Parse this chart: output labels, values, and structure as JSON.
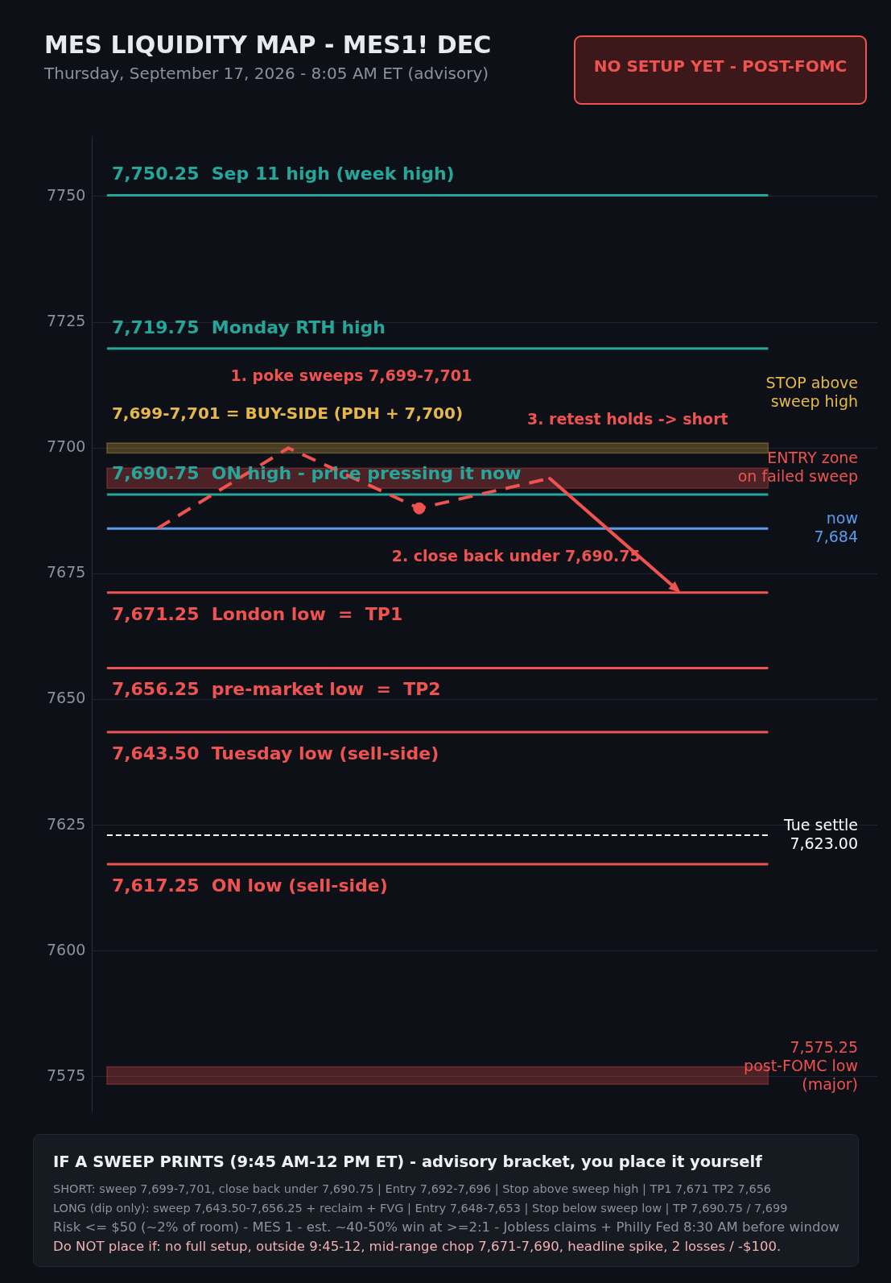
{
  "chart_data": {
    "type": "line",
    "title": "MES LIQUIDITY MAP - MES1! DEC",
    "subtitle": "Thursday, September 17, 2026 - 8:05 AM ET (advisory)",
    "categories": [
      null,
      null,
      null,
      null,
      null,
      null
    ],
    "series": [
      {
        "type": "line",
        "color": "#ef5350",
        "line_style": "dashed",
        "marker": "none",
        "values": [
          7684,
          7700,
          7688,
          7694,
          null,
          null
        ]
      },
      {
        "type": "scatter",
        "color": "#ef5350",
        "marker": "circle",
        "values": [
          null,
          null,
          7688,
          null,
          null,
          null
        ]
      }
    ],
    "ylim": [
      7568,
      7762
    ],
    "yticks": [
      7575,
      7600,
      7625,
      7650,
      7675,
      7700,
      7725,
      7750
    ],
    "grid": "y",
    "tick_labels": "y",
    "ref_lines": [
      {
        "axis": "y",
        "value": 7750.25,
        "label": "7,750.25  Sep 11 high (week high)",
        "color": "#26a69a",
        "line_style": "solid"
      },
      {
        "axis": "y",
        "value": 7719.75,
        "label": "7,719.75  Monday RTH high",
        "color": "#26a69a",
        "line_style": "solid"
      },
      {
        "axis": "y",
        "value": 7690.75,
        "label": "7,690.75  ON high - price pressing it now",
        "color": "#26a69a",
        "line_style": "solid"
      },
      {
        "axis": "y",
        "value": 7684,
        "label": "now\n7,684",
        "color": "#5b9cf0",
        "line_style": "solid"
      },
      {
        "axis": "y",
        "value": 7671.25,
        "label": "7,671.25  London low  =  TP1",
        "color": "#ef5350",
        "line_style": "solid"
      },
      {
        "axis": "y",
        "value": 7656.25,
        "label": "7,656.25  pre-market low  =  TP2",
        "color": "#ef5350",
        "line_style": "solid"
      },
      {
        "axis": "y",
        "value": 7643.5,
        "label": "7,643.50  Tuesday low (sell-side)",
        "color": "#ef5350",
        "line_style": "solid"
      },
      {
        "axis": "y",
        "value": 7623,
        "label": "Tue settle\n7,623.00",
        "color": "#ffffff",
        "line_style": "dashed"
      },
      {
        "axis": "y",
        "value": 7617.25,
        "label": "7,617.25  ON low (sell-side)",
        "color": "#ef5350",
        "line_style": "solid"
      }
    ],
    "bands": [
      {
        "axis": "y",
        "from": 7699,
        "to": 7701,
        "label": "7,699-7,701 = BUY-SIDE (PDH + 7,700)",
        "color": "#e6b84a"
      },
      {
        "axis": "y",
        "from": 7692,
        "to": 7696,
        "label": "ENTRY zone\non failed sweep",
        "color": "#ef5350"
      },
      {
        "axis": "y",
        "from": 7573.5,
        "to": 7577,
        "label": "7,575.25\npost-FOMC low\n(major)",
        "color": "#ef5350"
      }
    ],
    "annotations": [
      "NO SETUP YET - POST-FOMC",
      "1. poke sweeps 7,699-7,701",
      "2. close back under 7,690.75",
      "3. retest holds -> short",
      "STOP above\nsweep high",
      "IF A SWEEP PRINTS (9:45 AM-12 PM ET) - advisory bracket, you place it yourself",
      "SHORT: sweep 7,699-7,701, close back under 7,690.75 | Entry 7,692-7,696 | Stop above sweep high | TP1 7,671 TP2 7,656",
      "LONG (dip only): sweep 7,643.50-7,656.25 + reclaim + FVG | Entry 7,648-7,653 | Stop below sweep low | TP 7,690.75 / 7,699",
      "Risk <= $50 (~2% of room) - MES 1 - est. ~40-50% win at >=2:1 - Jobless claims + Philly Fed 8:30 AM before window",
      "Do NOT place if: no full setup, outside 9:45-12, mid-range chop 7,671-7,690, headline spike, 2 losses / -$100."
    ]
  }
}
